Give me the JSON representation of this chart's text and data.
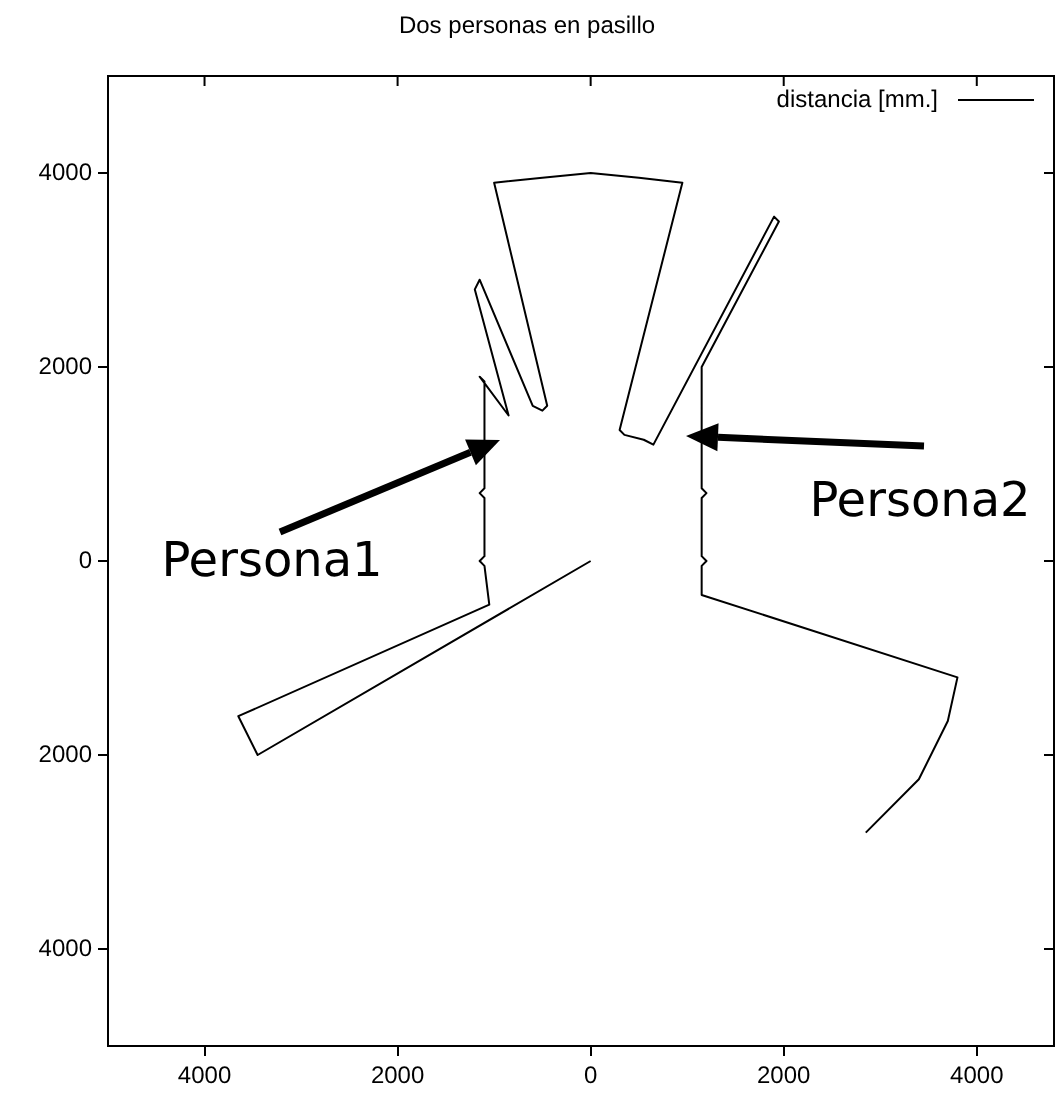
{
  "chart_data": {
    "type": "line",
    "title": "Dos personas en pasillo",
    "xlim": [
      -5000,
      4800
    ],
    "xticks": [
      {
        "value": -4000,
        "label": "4000"
      },
      {
        "value": -2000,
        "label": "2000"
      },
      0,
      2000,
      4000
    ],
    "ylim": [
      -5000,
      5000
    ],
    "yticks": [
      {
        "value": -4000,
        "label": "4000"
      },
      {
        "value": -2000,
        "label": "2000"
      },
      0,
      2000,
      4000
    ],
    "grid": false,
    "legend": "top right",
    "marker": "none",
    "line_style": "solid",
    "series": [
      {
        "name": "distancia [mm.]",
        "color": "#000000",
        "x": [
          2850,
          3400,
          3700,
          3800,
          1150,
          1150,
          1200,
          1150,
          1150,
          1200,
          1150,
          1150,
          1950,
          1900,
          650,
          550,
          350,
          300,
          950,
          500,
          0,
          -500,
          -1000,
          -450,
          -500,
          -600,
          -1150,
          -1200,
          -850,
          -1150,
          -1100,
          -1100,
          -1150,
          -1100,
          -1100,
          -1150,
          -1100,
          -1050,
          -3650,
          -3450,
          0
        ],
        "values": [
          -2800,
          -2250,
          -1650,
          -1200,
          -350,
          -50,
          0,
          50,
          650,
          700,
          750,
          2000,
          3500,
          3550,
          1200,
          1250,
          1300,
          1350,
          3900,
          3950,
          4000,
          3950,
          3900,
          1600,
          1550,
          1600,
          2900,
          2800,
          1500,
          1900,
          1850,
          750,
          700,
          650,
          50,
          0,
          -50,
          -450,
          -1600,
          -2000,
          0
        ]
      }
    ],
    "annotations": [
      "Persona1",
      "Persona2"
    ]
  }
}
